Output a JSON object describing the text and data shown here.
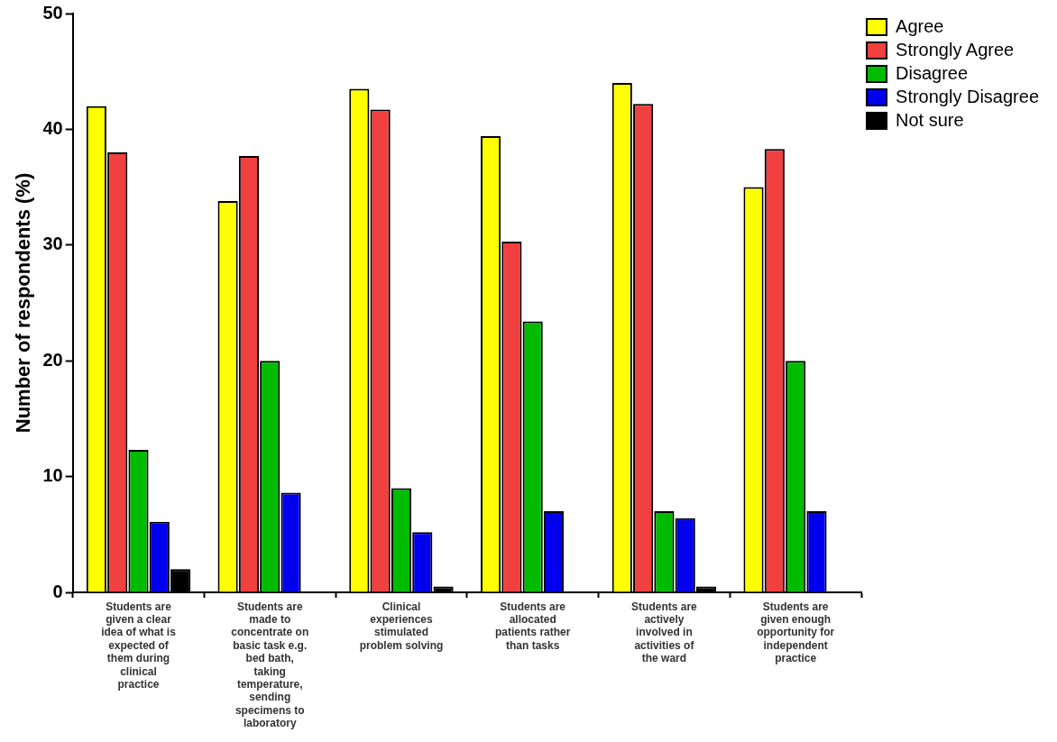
{
  "chart_data": {
    "type": "bar",
    "ylabel": "Number of respondents (%)",
    "categories": [
      "Students are given a clear idea of what is expected of them during clinical practice",
      "Students are made to concentrate on basic task e.g. bed bath, taking temperature, sending specimens to laboratory",
      "Clinical experiences stimulated problem solving",
      "Students are allocated patients rather than tasks",
      "Students are actively involved in activities of the ward",
      "Students are given enough opportunity for independent practice"
    ],
    "series": [
      {
        "name": "Agree",
        "color": "#ffff00",
        "values": [
          42,
          33.8,
          43.5,
          39.4,
          44,
          35
        ]
      },
      {
        "name": "Strongly Agree",
        "color": "#f04040",
        "values": [
          38,
          37.7,
          41.7,
          30.3,
          42.2,
          38.3
        ]
      },
      {
        "name": "Disagree",
        "color": "#00bb00",
        "values": [
          12.3,
          20,
          9,
          23.4,
          7,
          20
        ]
      },
      {
        "name": "Strongly Disagree",
        "color": "#0000ee",
        "values": [
          6.1,
          8.6,
          5.2,
          7,
          6.4,
          7
        ]
      },
      {
        "name": "Not sure",
        "color": "#000000",
        "values": [
          2,
          0,
          0.5,
          0,
          0.5,
          0
        ]
      }
    ],
    "ylim": [
      0,
      50
    ],
    "yticks": [
      0,
      10,
      20,
      30,
      40,
      50
    ],
    "grid": false,
    "legend": "top right"
  }
}
